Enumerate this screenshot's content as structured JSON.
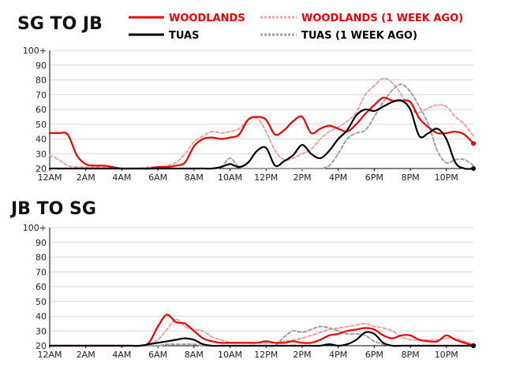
{
  "legend": [
    {
      "label": "WOODLANDS",
      "color": "#ee0000",
      "style": "solid"
    },
    {
      "label": "WOODLANDS (1 WEEK AGO)",
      "color": "#f0a0a0",
      "style": "dashed"
    },
    {
      "label": "TUAS",
      "color": "#000000",
      "style": "solid"
    },
    {
      "label": "TUAS (1 WEEK AGO)",
      "color": "#a0a0a0",
      "style": "dashed"
    }
  ],
  "chart_data": [
    {
      "type": "line",
      "title": "SG TO JB",
      "xlabel": "",
      "ylabel": "",
      "x_ticks": [
        "12AM",
        "2AM",
        "4AM",
        "6AM",
        "8AM",
        "10AM",
        "12PM",
        "2PM",
        "4PM",
        "6PM",
        "8PM",
        "10PM"
      ],
      "y_ticks": [
        "20",
        "30",
        "40",
        "50",
        "60",
        "70",
        "80",
        "90",
        "100+"
      ],
      "xlim": [
        0,
        23.5
      ],
      "ylim": [
        20,
        100
      ],
      "x": [
        0,
        0.5,
        1,
        1.5,
        2,
        2.5,
        3,
        3.5,
        4,
        4.5,
        5,
        5.5,
        6,
        6.5,
        7,
        7.5,
        8,
        8.5,
        9,
        9.5,
        10,
        10.5,
        11,
        11.5,
        12,
        12.5,
        13,
        13.5,
        14,
        14.5,
        15,
        15.5,
        16,
        16.5,
        17,
        17.5,
        18,
        18.5,
        19,
        19.5,
        20,
        20.5,
        21,
        21.5,
        22,
        22.5,
        23,
        23.5
      ],
      "series": [
        {
          "name": "WOODLANDS (1 WEEK AGO)",
          "color": "#f0a0a0",
          "dashed": true,
          "values": [
            29,
            26,
            22,
            21,
            21,
            21,
            21,
            20,
            20,
            20,
            20,
            21,
            21,
            22,
            24,
            30,
            38,
            42,
            45,
            44,
            45,
            47,
            53,
            54,
            45,
            32,
            26,
            27,
            30,
            33,
            40,
            45,
            48,
            52,
            58,
            70,
            76,
            81,
            78,
            70,
            60,
            58,
            61,
            63,
            62,
            55,
            50,
            42
          ]
        },
        {
          "name": "TUAS (1 WEEK AGO)",
          "color": "#a0a0a0",
          "dashed": true,
          "values": [
            20,
            20,
            20,
            20,
            20,
            20,
            20,
            20,
            20,
            20,
            20,
            20,
            20,
            20,
            20,
            20,
            20,
            20,
            20,
            21,
            27,
            21,
            20,
            20,
            20,
            20,
            20,
            20,
            20,
            20,
            20,
            22,
            30,
            40,
            44,
            46,
            55,
            65,
            73,
            77,
            72,
            62,
            50,
            32,
            24,
            26,
            26,
            22
          ]
        },
        {
          "name": "WOODLANDS",
          "color": "#ee0000",
          "dashed": false,
          "values": [
            44,
            44,
            43,
            29,
            23,
            22,
            22,
            21,
            20,
            20,
            20,
            20,
            21,
            21,
            22,
            24,
            35,
            40,
            41,
            40,
            41,
            43,
            53,
            55,
            53,
            43,
            46,
            52,
            55,
            44,
            47,
            49,
            47,
            45,
            50,
            57,
            63,
            68,
            66,
            66,
            65,
            54,
            48,
            44,
            44,
            45,
            43,
            37
          ]
        },
        {
          "name": "TUAS",
          "color": "#000000",
          "dashed": false,
          "values": [
            20,
            20,
            20,
            20,
            20,
            20,
            20,
            20,
            20,
            20,
            20,
            20,
            20,
            20,
            20,
            20,
            20,
            20,
            20,
            21,
            23,
            21,
            24,
            32,
            34,
            22,
            25,
            29,
            36,
            30,
            27,
            32,
            40,
            46,
            56,
            60,
            59,
            62,
            65,
            66,
            60,
            42,
            44,
            47,
            40,
            24,
            20,
            20
          ]
        }
      ]
    },
    {
      "type": "line",
      "title": "JB TO SG",
      "xlabel": "",
      "ylabel": "",
      "x_ticks": [
        "12AM",
        "2AM",
        "4AM",
        "6AM",
        "8AM",
        "10AM",
        "12PM",
        "2PM",
        "4PM",
        "6PM",
        "8PM",
        "10PM"
      ],
      "y_ticks": [
        "20",
        "30",
        "40",
        "50",
        "60",
        "70",
        "80",
        "90",
        "100+"
      ],
      "xlim": [
        0,
        23.5
      ],
      "ylim": [
        20,
        100
      ],
      "x": [
        0,
        0.5,
        1,
        1.5,
        2,
        2.5,
        3,
        3.5,
        4,
        4.5,
        5,
        5.5,
        6,
        6.5,
        7,
        7.5,
        8,
        8.5,
        9,
        9.5,
        10,
        10.5,
        11,
        11.5,
        12,
        12.5,
        13,
        13.5,
        14,
        14.5,
        15,
        15.5,
        16,
        16.5,
        17,
        17.5,
        18,
        18.5,
        19,
        19.5,
        20,
        20.5,
        21,
        21.5,
        22,
        22.5,
        23,
        23.5
      ],
      "series": [
        {
          "name": "WOODLANDS (1 WEEK AGO)",
          "color": "#f0a0a0",
          "dashed": true,
          "values": [
            20,
            20,
            20,
            20,
            20,
            20,
            20,
            20,
            20,
            20,
            20,
            21,
            24,
            31,
            38,
            33,
            31,
            30,
            26,
            24,
            22,
            22,
            22,
            22,
            22,
            22,
            23,
            24,
            25,
            27,
            29,
            31,
            32,
            33,
            34,
            35,
            33,
            32,
            30,
            26,
            24,
            24,
            24,
            24,
            25,
            25,
            23,
            21
          ]
        },
        {
          "name": "TUAS (1 WEEK AGO)",
          "color": "#a0a0a0",
          "dashed": true,
          "values": [
            20,
            20,
            20,
            20,
            20,
            20,
            20,
            20,
            20,
            20,
            20,
            20,
            20,
            21,
            21,
            21,
            21,
            20,
            20,
            20,
            20,
            20,
            20,
            20,
            20,
            20,
            26,
            30,
            29,
            31,
            33,
            32,
            30,
            28,
            28,
            27,
            23,
            21,
            20,
            20,
            20,
            20,
            20,
            20,
            20,
            20,
            20,
            20
          ]
        },
        {
          "name": "WOODLANDS",
          "color": "#ee0000",
          "dashed": false,
          "values": [
            20,
            20,
            20,
            20,
            20,
            20,
            20,
            20,
            20,
            20,
            20,
            22,
            33,
            41,
            36,
            35,
            30,
            25,
            23,
            22,
            22,
            22,
            22,
            22,
            23,
            22,
            22,
            23,
            22,
            22,
            24,
            27,
            28,
            30,
            31,
            32,
            31,
            27,
            25,
            27,
            27,
            24,
            23,
            23,
            27,
            24,
            22,
            20
          ]
        },
        {
          "name": "TUAS",
          "color": "#000000",
          "dashed": false,
          "values": [
            20,
            20,
            20,
            20,
            20,
            20,
            20,
            20,
            20,
            20,
            20,
            21,
            22,
            23,
            24,
            25,
            24,
            21,
            20,
            20,
            20,
            20,
            20,
            20,
            20,
            20,
            20,
            20,
            20,
            20,
            20,
            21,
            20,
            21,
            24,
            29,
            28,
            22,
            20,
            20,
            20,
            20,
            20,
            20,
            20,
            20,
            20,
            20
          ]
        }
      ]
    }
  ]
}
